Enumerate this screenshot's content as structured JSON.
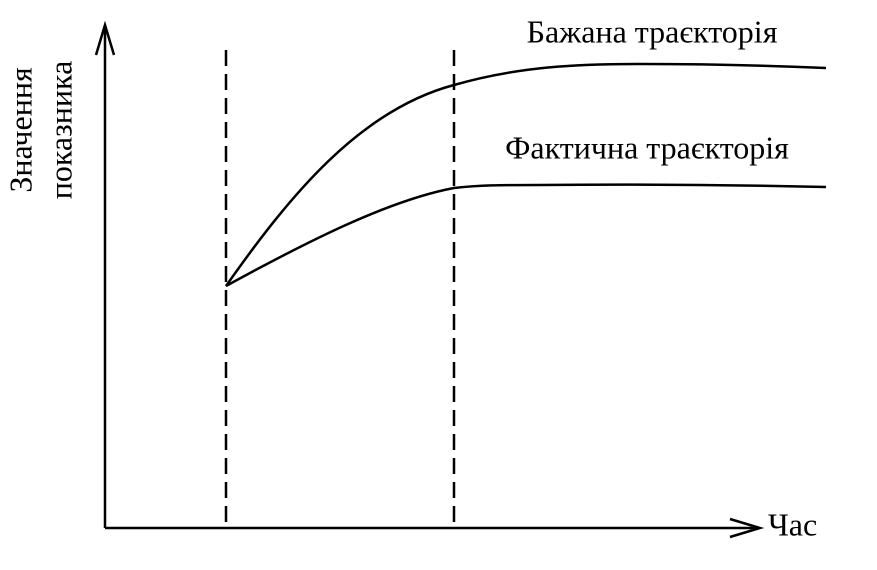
{
  "labels": {
    "desired": "Бажана траєкторія",
    "actual": "Фактична траєкторія"
  },
  "axes": {
    "x_label": "Час",
    "y_label": [
      "Значення",
      "показника"
    ]
  }
}
